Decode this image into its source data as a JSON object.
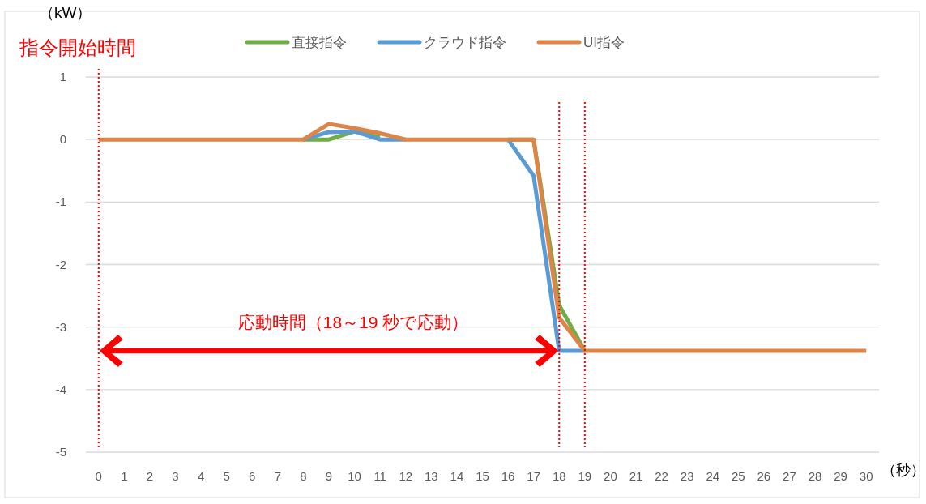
{
  "chart_data": {
    "type": "line",
    "ylabel": "（kW）",
    "xlabel": "（秒）",
    "x": [
      0,
      1,
      2,
      3,
      4,
      5,
      6,
      7,
      8,
      9,
      10,
      11,
      12,
      13,
      14,
      15,
      16,
      17,
      18,
      19,
      20,
      21,
      22,
      23,
      24,
      25,
      26,
      27,
      28,
      29,
      30
    ],
    "series": [
      {
        "name": "直接指令",
        "color": "#70ad47",
        "values": [
          null,
          null,
          null,
          null,
          null,
          null,
          null,
          null,
          0,
          0,
          0.13,
          0.05,
          null,
          null,
          null,
          null,
          0,
          0,
          -2.65,
          -3.38,
          null,
          null,
          null,
          null,
          null,
          null,
          null,
          null,
          null,
          null,
          null
        ]
      },
      {
        "name": "クラウド指令",
        "color": "#5b9bd5",
        "values": [
          null,
          null,
          null,
          null,
          null,
          null,
          null,
          null,
          0,
          0.12,
          0.13,
          0,
          0,
          null,
          null,
          null,
          0,
          -0.58,
          -3.38,
          -3.38,
          null,
          null,
          null,
          null,
          null,
          null,
          null,
          null,
          null,
          null,
          null
        ]
      },
      {
        "name": "UI指令",
        "color": "#dd8447",
        "values": [
          0,
          0,
          0,
          0,
          0,
          0,
          0,
          0,
          0,
          0.25,
          0.18,
          0.1,
          0,
          0,
          0,
          0,
          0,
          0,
          -2.85,
          -3.38,
          -3.38,
          -3.38,
          -3.38,
          -3.38,
          -3.38,
          -3.38,
          -3.38,
          -3.38,
          -3.38,
          -3.38,
          -3.38
        ]
      }
    ],
    "xlim": [
      -0.5,
      30.5
    ],
    "xticks": [
      0,
      1,
      2,
      3,
      4,
      5,
      6,
      7,
      8,
      9,
      10,
      11,
      12,
      13,
      14,
      15,
      16,
      17,
      18,
      19,
      20,
      21,
      22,
      23,
      24,
      25,
      26,
      27,
      28,
      29,
      30
    ],
    "ylim": [
      -5,
      1
    ],
    "yticks": [
      -5,
      -4,
      -3,
      -2,
      -1,
      0,
      1
    ],
    "grid": "y",
    "legend": "top",
    "marker": "none",
    "line_style": "solid",
    "ref_lines": [
      {
        "axis": "x",
        "value": 0,
        "label": "指令開始時間",
        "color": "#ff0000",
        "line_style": "dotted"
      },
      {
        "axis": "x",
        "value": 18,
        "color": "#ff0000",
        "line_style": "dotted"
      },
      {
        "axis": "x",
        "value": 19,
        "color": "#ff0000",
        "line_style": "dotted"
      }
    ],
    "annotations": [
      "応動時間（18～19 秒で応動）"
    ]
  }
}
